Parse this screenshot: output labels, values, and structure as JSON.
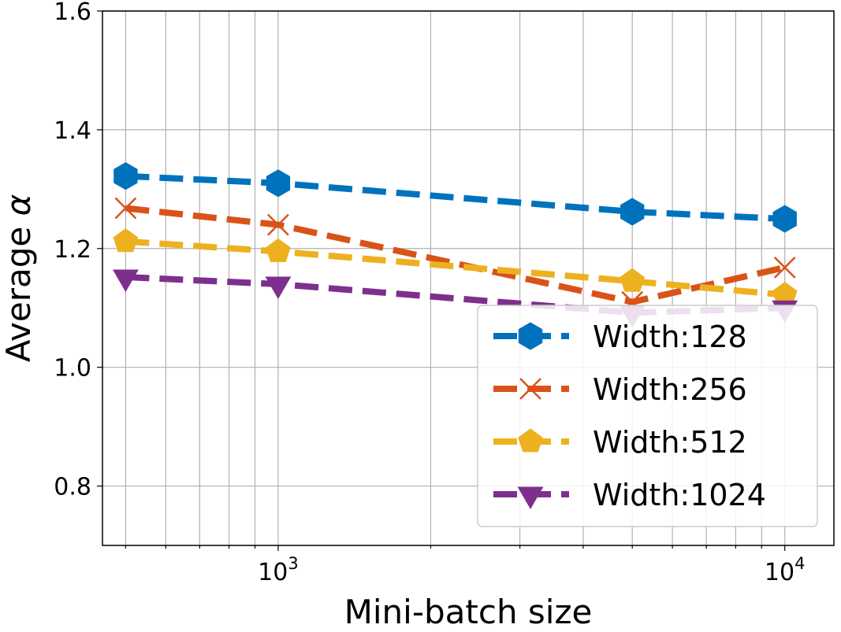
{
  "chart_data": {
    "type": "line",
    "xscale": "log",
    "xlabel": "Mini-batch size",
    "ylabel": "Average α",
    "ylabel_prefix": "Average",
    "ylabel_symbol": "α",
    "xlim": [
      450,
      12500
    ],
    "ylim": [
      0.7,
      1.6
    ],
    "yticks": [
      0.8,
      1.0,
      1.2,
      1.4,
      1.6
    ],
    "ytick_labels": [
      "0.8",
      "1.0",
      "1.2",
      "1.4",
      "1.6"
    ],
    "xticks_major": [
      1000,
      10000
    ],
    "xtick_labels": [
      {
        "base": "10",
        "exp": "3"
      },
      {
        "base": "10",
        "exp": "4"
      }
    ],
    "grid": true,
    "legend_position": "lower-right",
    "x": [
      500,
      1000,
      5000,
      10000
    ],
    "series": [
      {
        "name": "Width:128",
        "color": "#0072BD",
        "marker": "hexagon",
        "values": [
          1.322,
          1.31,
          1.262,
          1.25
        ]
      },
      {
        "name": "Width:256",
        "color": "#D95319",
        "marker": "x",
        "values": [
          1.268,
          1.24,
          1.11,
          1.168
        ]
      },
      {
        "name": "Width:512",
        "color": "#EDB120",
        "marker": "pentagon",
        "values": [
          1.212,
          1.195,
          1.145,
          1.122
        ]
      },
      {
        "name": "Width:1024",
        "color": "#7E2F8E",
        "marker": "triangle-down",
        "values": [
          1.152,
          1.14,
          1.092,
          1.1
        ]
      }
    ]
  }
}
